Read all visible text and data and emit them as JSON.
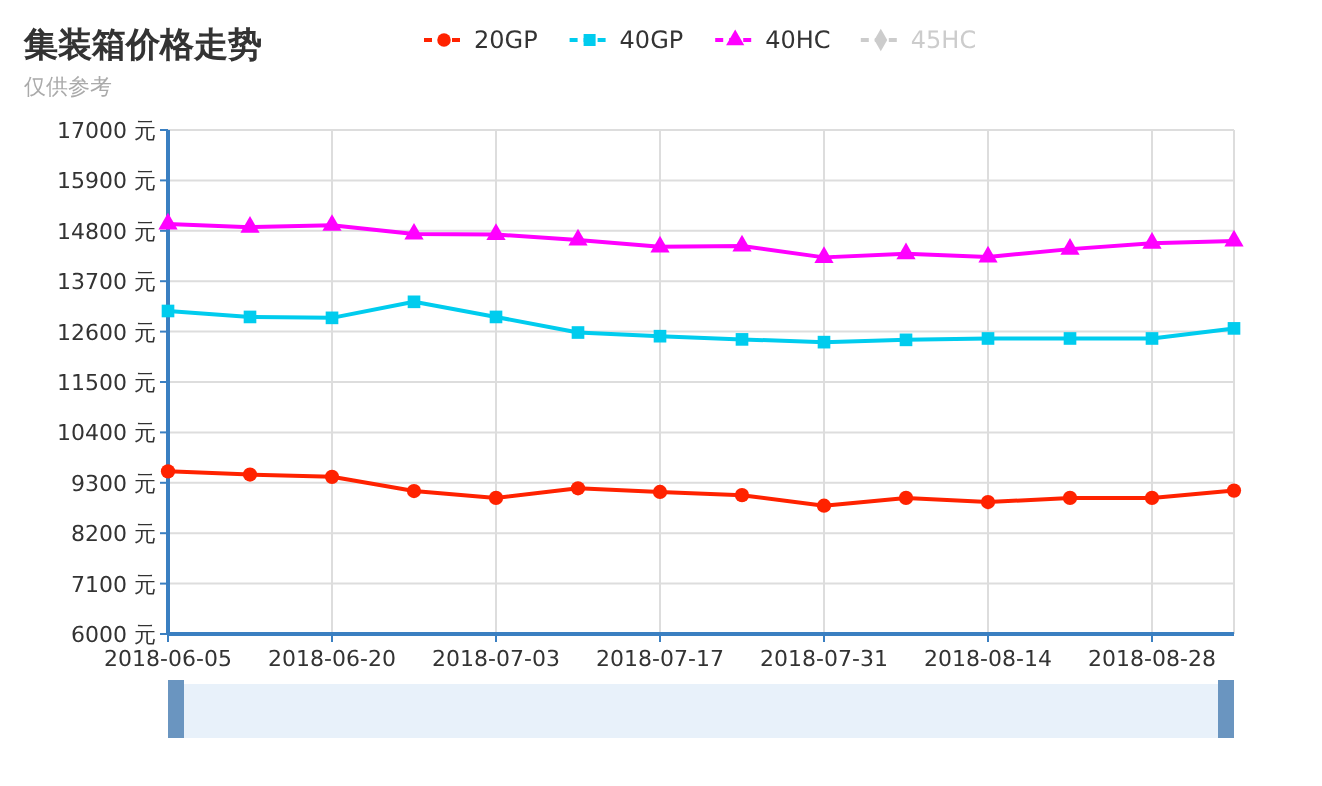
{
  "chart_data": {
    "type": "line",
    "title": "集装箱价格走势",
    "subtitle": "仅供参考",
    "categories": [
      "2018-06-05",
      null,
      "2018-06-20",
      null,
      "2018-07-03",
      null,
      "2018-07-17",
      null,
      "2018-07-31",
      null,
      "2018-08-14",
      null,
      "2018-08-28",
      null
    ],
    "series": [
      {
        "name": "20GP",
        "color": "#ff2200",
        "marker": "circle",
        "values": [
          9550,
          9480,
          9430,
          9120,
          8970,
          9180,
          9100,
          9030,
          8800,
          8970,
          8880,
          8970,
          8970,
          9130
        ]
      },
      {
        "name": "40GP",
        "color": "#00ccee",
        "marker": "square",
        "values": [
          13050,
          12920,
          12900,
          13250,
          12920,
          12580,
          12500,
          12430,
          12370,
          12420,
          12450,
          12450,
          12450,
          12670
        ]
      },
      {
        "name": "40HC",
        "color": "#ff00ff",
        "marker": "triangle",
        "values": [
          14950,
          14880,
          14920,
          14730,
          14720,
          14600,
          14450,
          14470,
          14220,
          14300,
          14230,
          14400,
          14530,
          14580
        ]
      },
      {
        "name": "45HC",
        "color": "#cccccc",
        "marker": "diamond",
        "values": [
          null,
          null,
          null,
          null,
          null,
          null,
          null,
          null,
          null,
          null,
          null,
          null,
          null,
          null
        ]
      }
    ],
    "ylim": [
      6000,
      17000
    ],
    "yticks": [
      {
        "value": 6000,
        "label": "6000 元"
      },
      {
        "value": 7100,
        "label": "7100 元"
      },
      {
        "value": 8200,
        "label": "8200 元"
      },
      {
        "value": 9300,
        "label": "9300 元"
      },
      {
        "value": 10400,
        "label": "10400 元"
      },
      {
        "value": 11500,
        "label": "11500 元"
      },
      {
        "value": 12600,
        "label": "12600 元"
      },
      {
        "value": 13700,
        "label": "13700 元"
      },
      {
        "value": 14800,
        "label": "14800 元"
      },
      {
        "value": 15900,
        "label": "15900 元"
      },
      {
        "value": 17000,
        "label": "17000 元"
      }
    ],
    "grid": true,
    "legend": "top",
    "line_style": "solid"
  }
}
